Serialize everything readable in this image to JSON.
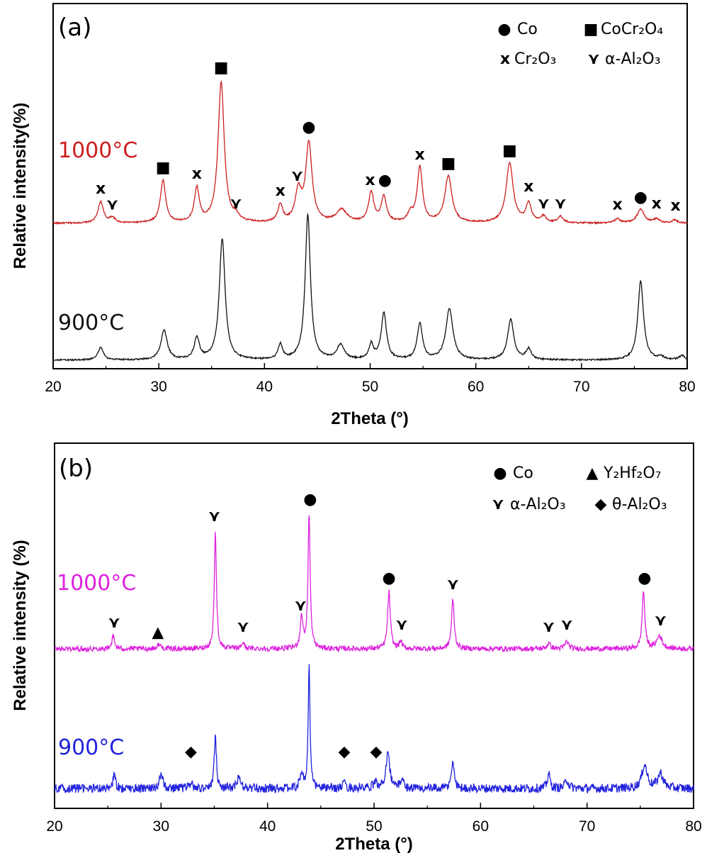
{
  "chart_data": [
    {
      "type": "line",
      "panel_label": "(a)",
      "xlabel": "2Theta (°)",
      "ylabel": "Relative intensity(%)",
      "xlim": [
        20,
        80
      ],
      "xticks": [
        "20",
        "30",
        "40",
        "50",
        "60",
        "70",
        "80"
      ],
      "legend": [
        {
          "symbol": "●",
          "label": "Co"
        },
        {
          "symbol": "■",
          "label": "CoCr₂O₄"
        },
        {
          "symbol": "x",
          "label": "Cr₂O₃"
        },
        {
          "symbol": "⋎",
          "label": "α-Al₂O₃"
        }
      ],
      "legend_position": "top-right",
      "series": [
        {
          "name": "1000°C",
          "color": "#cc1f1f",
          "baseline": 0.0,
          "noise": 0.0012,
          "peaks": [
            [
              24.5,
              0.1,
              0.3
            ],
            [
              25.6,
              0.025,
              0.3
            ],
            [
              30.4,
              0.2,
              0.3
            ],
            [
              33.6,
              0.16,
              0.28
            ],
            [
              35.9,
              0.66,
              0.35
            ],
            [
              37.3,
              0.025,
              0.3
            ],
            [
              41.5,
              0.08,
              0.28
            ],
            [
              43.2,
              0.14,
              0.35
            ],
            [
              44.2,
              0.37,
              0.36
            ],
            [
              47.3,
              0.06,
              0.6
            ],
            [
              50.1,
              0.14,
              0.3
            ],
            [
              51.3,
              0.12,
              0.3
            ],
            [
              53.8,
              0.04,
              0.3
            ],
            [
              54.7,
              0.26,
              0.3
            ],
            [
              57.4,
              0.22,
              0.4
            ],
            [
              63.2,
              0.28,
              0.4
            ],
            [
              65.0,
              0.09,
              0.3
            ],
            [
              66.4,
              0.03,
              0.3
            ],
            [
              68.0,
              0.03,
              0.3
            ],
            [
              73.4,
              0.02,
              0.3
            ],
            [
              75.6,
              0.065,
              0.4
            ],
            [
              77.1,
              0.02,
              0.3
            ],
            [
              78.8,
              0.015,
              0.3
            ]
          ]
        },
        {
          "name": "900°C",
          "color": "#111111",
          "baseline": 0.0,
          "noise": 0.0012,
          "peaks": [
            [
              24.5,
              0.06,
              0.3
            ],
            [
              30.5,
              0.14,
              0.35
            ],
            [
              33.6,
              0.1,
              0.3
            ],
            [
              36.0,
              0.57,
              0.33
            ],
            [
              41.5,
              0.07,
              0.25
            ],
            [
              44.1,
              0.68,
              0.3
            ],
            [
              47.2,
              0.07,
              0.4
            ],
            [
              50.1,
              0.07,
              0.25
            ],
            [
              51.3,
              0.22,
              0.3
            ],
            [
              54.7,
              0.17,
              0.3
            ],
            [
              57.5,
              0.24,
              0.4
            ],
            [
              63.3,
              0.19,
              0.35
            ],
            [
              65.0,
              0.05,
              0.3
            ],
            [
              75.6,
              0.37,
              0.32
            ],
            [
              77.5,
              0.015,
              0.3
            ],
            [
              79.5,
              0.02,
              0.3
            ]
          ]
        }
      ],
      "markers": [
        {
          "symbol": "x",
          "x": 24.5,
          "y": 0.14
        },
        {
          "symbol": "⋎",
          "x": 25.6,
          "y": 0.065
        },
        {
          "symbol": "■",
          "x": 30.4,
          "y": 0.24
        },
        {
          "symbol": "x",
          "x": 33.6,
          "y": 0.21
        },
        {
          "symbol": "■",
          "x": 35.9,
          "y": 0.71
        },
        {
          "symbol": "⋎",
          "x": 37.3,
          "y": 0.07
        },
        {
          "symbol": "x",
          "x": 41.5,
          "y": 0.13
        },
        {
          "symbol": "⋎",
          "x": 43.1,
          "y": 0.2
        },
        {
          "symbol": "●",
          "x": 44.2,
          "y": 0.43
        },
        {
          "symbol": "x",
          "x": 50.0,
          "y": 0.18
        },
        {
          "symbol": "●",
          "x": 51.4,
          "y": 0.18
        },
        {
          "symbol": "x",
          "x": 54.7,
          "y": 0.3
        },
        {
          "symbol": "■",
          "x": 57.4,
          "y": 0.26
        },
        {
          "symbol": "■",
          "x": 63.2,
          "y": 0.32
        },
        {
          "symbol": "x",
          "x": 65.0,
          "y": 0.15
        },
        {
          "symbol": "⋎",
          "x": 66.4,
          "y": 0.07
        },
        {
          "symbol": "⋎",
          "x": 68.0,
          "y": 0.07
        },
        {
          "symbol": "x",
          "x": 73.4,
          "y": 0.065
        },
        {
          "symbol": "●",
          "x": 75.6,
          "y": 0.1
        },
        {
          "symbol": "x",
          "x": 77.1,
          "y": 0.07
        },
        {
          "symbol": "x",
          "x": 78.9,
          "y": 0.06
        }
      ]
    },
    {
      "type": "line",
      "panel_label": "(b)",
      "xlabel": "2Theta (°)",
      "ylabel": "Relative intensity (%)",
      "xlim": [
        20,
        80
      ],
      "xticks": [
        "20",
        "30",
        "40",
        "50",
        "60",
        "70",
        "80"
      ],
      "legend": [
        {
          "symbol": "●",
          "label": "Co"
        },
        {
          "symbol": "▲",
          "label": "Y₂Hf₂O₇"
        },
        {
          "symbol": "⋎",
          "label": "α-Al₂O₃"
        },
        {
          "symbol": "◆",
          "label": "θ-Al₂O₃"
        }
      ],
      "legend_position": "top-right",
      "series": [
        {
          "name": "1000°C",
          "color": "#dd22dd",
          "baseline": 0.0,
          "noise": 0.004,
          "peaks": [
            [
              25.5,
              0.06,
              0.15
            ],
            [
              29.8,
              0.02,
              0.2
            ],
            [
              35.1,
              0.55,
              0.12
            ],
            [
              37.7,
              0.03,
              0.15
            ],
            [
              43.2,
              0.15,
              0.15
            ],
            [
              43.9,
              0.63,
              0.12
            ],
            [
              51.4,
              0.27,
              0.15
            ],
            [
              52.5,
              0.035,
              0.15
            ],
            [
              57.4,
              0.23,
              0.15
            ],
            [
              66.4,
              0.025,
              0.2
            ],
            [
              68.1,
              0.035,
              0.2
            ],
            [
              75.3,
              0.27,
              0.15
            ],
            [
              76.8,
              0.06,
              0.3
            ]
          ]
        },
        {
          "name": "900°C",
          "color": "#2222dd",
          "baseline": 0.0,
          "noise": 0.007,
          "peaks": [
            [
              25.6,
              0.07,
              0.12
            ],
            [
              30.0,
              0.06,
              0.2
            ],
            [
              32.8,
              0.02,
              0.2
            ],
            [
              35.1,
              0.25,
              0.12
            ],
            [
              37.3,
              0.05,
              0.2
            ],
            [
              43.2,
              0.08,
              0.15
            ],
            [
              43.9,
              0.58,
              0.1
            ],
            [
              47.2,
              0.02,
              0.2
            ],
            [
              50.1,
              0.03,
              0.2
            ],
            [
              51.3,
              0.18,
              0.2
            ],
            [
              52.6,
              0.04,
              0.2
            ],
            [
              57.4,
              0.13,
              0.15
            ],
            [
              66.4,
              0.07,
              0.15
            ],
            [
              68.1,
              0.04,
              0.2
            ],
            [
              75.4,
              0.11,
              0.3
            ],
            [
              76.9,
              0.07,
              0.3
            ]
          ]
        }
      ],
      "markers": [
        {
          "symbol": "⋎",
          "x": 25.6,
          "y": 0.1
        },
        {
          "symbol": "▲",
          "x": 29.7,
          "y": 0.055
        },
        {
          "symbol": "⋎",
          "x": 35.0,
          "y": 0.6
        },
        {
          "symbol": "⋎",
          "x": 37.7,
          "y": 0.08
        },
        {
          "symbol": "●",
          "x": 44.0,
          "y": 0.68
        },
        {
          "symbol": "⋎",
          "x": 43.1,
          "y": 0.18
        },
        {
          "symbol": "●",
          "x": 51.4,
          "y": 0.31
        },
        {
          "symbol": "⋎",
          "x": 52.6,
          "y": 0.09
        },
        {
          "symbol": "⋎",
          "x": 57.4,
          "y": 0.28
        },
        {
          "symbol": "⋎",
          "x": 66.4,
          "y": 0.08
        },
        {
          "symbol": "⋎",
          "x": 68.1,
          "y": 0.09
        },
        {
          "symbol": "●",
          "x": 75.4,
          "y": 0.31
        },
        {
          "symbol": "⋎",
          "x": 76.9,
          "y": 0.11
        },
        {
          "symbol": "◆",
          "x": 32.8,
          "y": -0.15
        },
        {
          "symbol": "◆",
          "x": 47.2,
          "y": -0.15
        },
        {
          "symbol": "◆",
          "x": 50.2,
          "y": -0.15
        }
      ]
    }
  ]
}
